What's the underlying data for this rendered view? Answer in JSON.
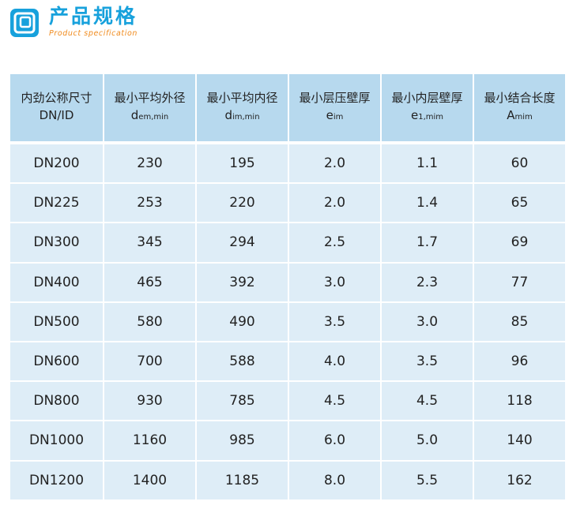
{
  "brand": {
    "title": "产品规格",
    "subtitle": "Product specification",
    "accent": "#17a1dc",
    "sub_color": "#f08a1c",
    "icon": "square-frame-icon"
  },
  "table": {
    "header_bg": "#b7d9ee",
    "row_bg": "#deedf7",
    "headers": [
      {
        "main": "内劲公称尺寸",
        "sub": "DN/ID",
        "sub_small": ""
      },
      {
        "main": "最小平均外径",
        "sub": "d",
        "sub_small": "em,min"
      },
      {
        "main": "最小平均内径",
        "sub": "d",
        "sub_small": "im,min"
      },
      {
        "main": "最小层压壁厚",
        "sub": "e",
        "sub_small": "im"
      },
      {
        "main": "最小内层壁厚",
        "sub": "e",
        "sub_small": "1,mim"
      },
      {
        "main": "最小结合长度",
        "sub": "A",
        "sub_small": "mim"
      }
    ],
    "rows": [
      [
        "DN200",
        "230",
        "195",
        "2.0",
        "1.1",
        "60"
      ],
      [
        "DN225",
        "253",
        "220",
        "2.0",
        "1.4",
        "65"
      ],
      [
        "DN300",
        "345",
        "294",
        "2.5",
        "1.7",
        "69"
      ],
      [
        "DN400",
        "465",
        "392",
        "3.0",
        "2.3",
        "77"
      ],
      [
        "DN500",
        "580",
        "490",
        "3.5",
        "3.0",
        "85"
      ],
      [
        "DN600",
        "700",
        "588",
        "4.0",
        "3.5",
        "96"
      ],
      [
        "DN800",
        "930",
        "785",
        "4.5",
        "4.5",
        "118"
      ],
      [
        "DN1000",
        "1160",
        "985",
        "6.0",
        "5.0",
        "140"
      ],
      [
        "DN1200",
        "1400",
        "1185",
        "8.0",
        "5.5",
        "162"
      ]
    ]
  }
}
